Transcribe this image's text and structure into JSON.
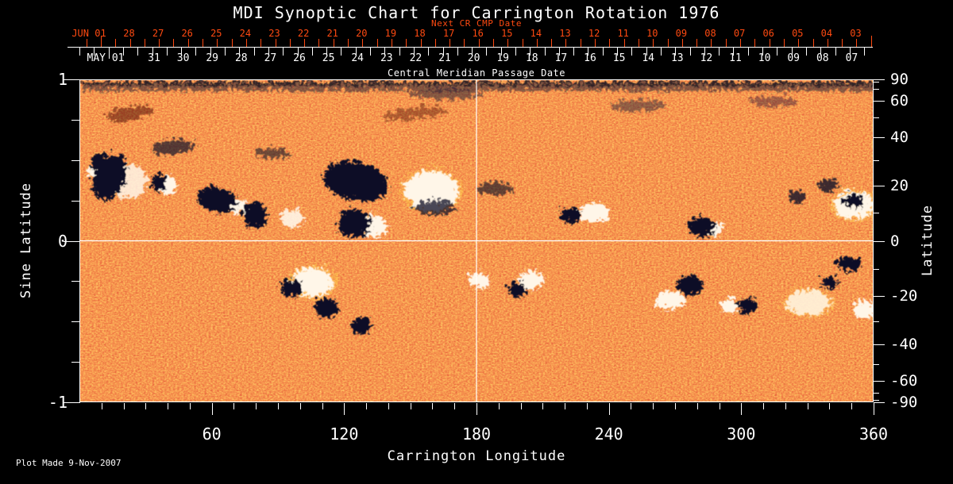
{
  "title": "MDI Synoptic Chart for Carrington Rotation 1976",
  "footer": "Plot Made  9-Nov-2007",
  "colors": {
    "background": "#000000",
    "foreground": "#ffffff",
    "accent_red": "#ff4a11",
    "map_base_orange": "#e8491d",
    "map_negative": "#0b0b26",
    "map_positive": "#fff6e8"
  },
  "top_axis_red": {
    "label": "Next CR CMP Date",
    "first_label": "JUN 01",
    "days": [
      "28",
      "27",
      "26",
      "25",
      "24",
      "23",
      "22",
      "21",
      "20",
      "19",
      "18",
      "17",
      "16",
      "15",
      "14",
      "13",
      "12",
      "11",
      "10",
      "09",
      "08",
      "07",
      "06",
      "05",
      "04",
      "03"
    ]
  },
  "top_axis_white": {
    "label": "Central Meridian Passage Date",
    "first_label": "MAY 01",
    "days": [
      "31",
      "30",
      "29",
      "28",
      "27",
      "26",
      "25",
      "24",
      "23",
      "22",
      "21",
      "20",
      "19",
      "18",
      "17",
      "16",
      "15",
      "14",
      "13",
      "12",
      "11",
      "10",
      "09",
      "08",
      "07"
    ]
  },
  "bottom_axis": {
    "label": "Carrington Longitude",
    "major_ticks": [
      60,
      120,
      180,
      240,
      300,
      360
    ],
    "minor_tick_step_deg": 10,
    "range": [
      0,
      360
    ]
  },
  "left_axis": {
    "label": "Sine Latitude",
    "major_ticks": [
      1,
      0,
      -1
    ],
    "minor_ticks": [
      0.75,
      0.5,
      0.25,
      -0.25,
      -0.5,
      -0.75
    ],
    "range": [
      -1,
      1
    ]
  },
  "right_axis": {
    "label": "Latitude",
    "major_ticks": [
      90,
      60,
      40,
      20,
      0,
      -20,
      -40,
      -60,
      -90
    ],
    "minor_ticks": [
      80,
      70,
      50,
      30,
      10,
      -10,
      -30,
      -50,
      -70,
      -80
    ]
  },
  "chart_data": {
    "type": "heatmap",
    "title": "MDI Synoptic Chart for Carrington Rotation 1976",
    "xlabel": "Carrington Longitude",
    "ylabel_left": "Sine Latitude",
    "ylabel_right": "Latitude",
    "xlim": [
      0,
      360
    ],
    "ylim_sine_latitude": [
      -1,
      1
    ],
    "top_axis_red_label": "Next CR CMP Date",
    "top_axis_white_label": "Central Meridian Passage Date",
    "crosshair": {
      "longitude_deg": 180,
      "sine_latitude": 0
    },
    "colormap": "orange-red magnetogram; dark blue-black = negative polarity, white-yellow = positive polarity",
    "active_regions": [
      {
        "lon": 12,
        "lat": 27,
        "polarity": "mixed"
      },
      {
        "lon": 38,
        "lat": 21,
        "polarity": "mixed"
      },
      {
        "lon": 62,
        "lat": 18,
        "polarity": "negative"
      },
      {
        "lon": 88,
        "lat": 25,
        "polarity": "negative"
      },
      {
        "lon": 122,
        "lat": 23,
        "polarity": "negative"
      },
      {
        "lon": 158,
        "lat": 19,
        "polarity": "positive"
      },
      {
        "lon": 132,
        "lat": 6,
        "polarity": "mixed"
      },
      {
        "lon": 232,
        "lat": 12,
        "polarity": "positive"
      },
      {
        "lon": 281,
        "lat": 6,
        "polarity": "negative"
      },
      {
        "lon": 349,
        "lat": 14,
        "polarity": "mixed"
      },
      {
        "lon": 104,
        "lat": -14,
        "polarity": "mixed"
      },
      {
        "lon": 127,
        "lat": -31,
        "polarity": "negative"
      },
      {
        "lon": 180,
        "lat": -13,
        "polarity": "positive"
      },
      {
        "lon": 203,
        "lat": -15,
        "polarity": "mixed"
      },
      {
        "lon": 266,
        "lat": -19,
        "polarity": "mixed"
      },
      {
        "lon": 301,
        "lat": -23,
        "polarity": "negative"
      },
      {
        "lon": 329,
        "lat": -21,
        "polarity": "positive"
      },
      {
        "lon": 347,
        "lat": -8,
        "polarity": "negative"
      }
    ]
  }
}
